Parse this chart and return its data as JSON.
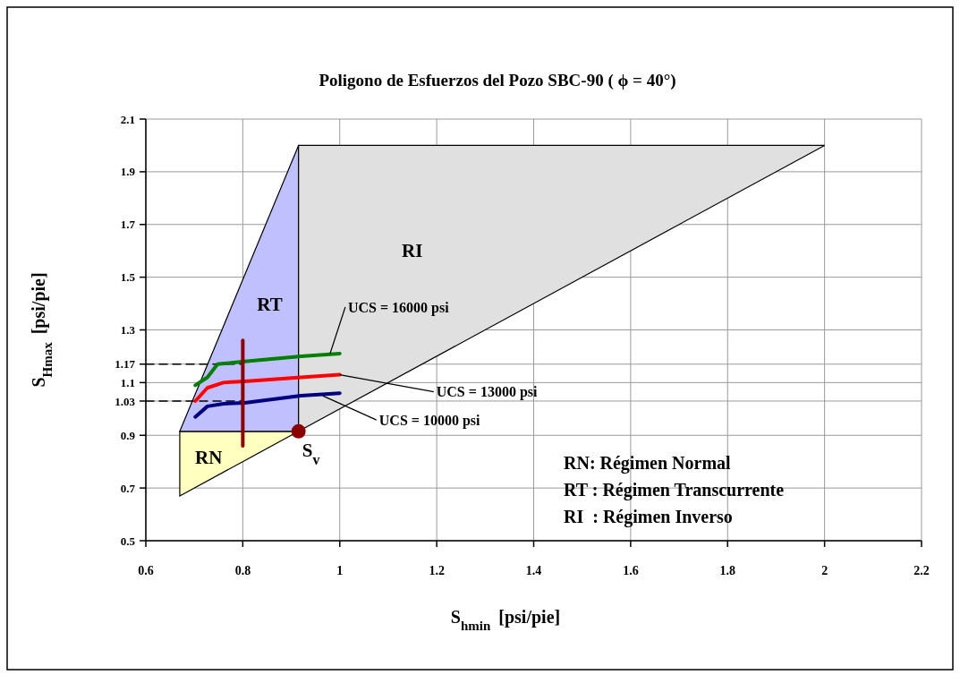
{
  "chart_data": {
    "type": "line",
    "title": "Poligono de Esfuerzos del Pozo SBC-90 ( ϕ = 40°)",
    "xlabel": "S$_{hmin}$ [psi/pie]",
    "ylabel": "S$_{Hmax}$ [psi/pie]",
    "xlim": [
      0.6,
      2.2
    ],
    "ylim": [
      0.5,
      2.1
    ],
    "xticks": [
      0.6,
      0.8,
      1,
      1.2,
      1.4,
      1.6,
      1.8,
      2,
      2.2
    ],
    "yticks": [
      0.5,
      0.7,
      0.9,
      1.03,
      1.1,
      1.17,
      1.3,
      1.5,
      1.7,
      1.9,
      2.1
    ],
    "grid": true,
    "series": [
      {
        "type": "area",
        "name": "RN",
        "color": "#ffffc0",
        "x": [
          0.67,
          0.915,
          0.67
        ],
        "values": [
          0.915,
          0.915,
          0.67
        ]
      },
      {
        "type": "area",
        "name": "RT",
        "color": "#c0c0ff",
        "x": [
          0.67,
          0.915,
          0.915
        ],
        "values": [
          0.915,
          2.0,
          0.915
        ]
      },
      {
        "type": "area",
        "name": "RI",
        "color": "#e0e0e0",
        "x": [
          0.915,
          2.0,
          0.915
        ],
        "values": [
          2.0,
          2.0,
          0.915
        ]
      },
      {
        "color": "#000000",
        "line_style": "dashed",
        "x": [
          0.6,
          0.8
        ],
        "values": [
          1.17,
          1.17
        ]
      },
      {
        "color": "#000000",
        "line_style": "dashed",
        "x": [
          0.6,
          0.8
        ],
        "values": [
          1.03,
          1.03
        ]
      },
      {
        "color": "#008000",
        "x": [
          0.702,
          0.727,
          0.748,
          0.804,
          0.92,
          1.0
        ],
        "values": [
          1.09,
          1.12,
          1.17,
          1.18,
          1.2,
          1.21
        ]
      },
      {
        "color": "#ff0000",
        "x": [
          0.702,
          0.727,
          0.76,
          0.804,
          0.92,
          1.0
        ],
        "values": [
          1.03,
          1.08,
          1.1,
          1.105,
          1.12,
          1.13
        ]
      },
      {
        "color": "#000080",
        "x": [
          0.702,
          0.727,
          0.76,
          0.804,
          0.92,
          1.0
        ],
        "values": [
          0.97,
          1.01,
          1.02,
          1.023,
          1.05,
          1.06
        ]
      },
      {
        "color": "#8b0000",
        "x": [
          0.8,
          0.8
        ],
        "values": [
          0.86,
          1.26
        ]
      },
      {
        "type": "scatter",
        "name": "S$_{v}$",
        "color": "#8b0000",
        "marker": "circle",
        "x": [
          0.915
        ],
        "values": [
          0.915
        ]
      }
    ],
    "annotations": [
      {
        "text": "UCS = 16000 psi",
        "x": 0.98,
        "y": 1.21
      },
      {
        "text": "UCS = 13000 psi",
        "x": 1.0,
        "y": 1.13
      },
      {
        "text": "UCS = 10000 psi",
        "x": 0.965,
        "y": 1.05
      },
      "RN: Régimen Normal",
      "RT : Régimen Transcurrente",
      "RI  : Régimen Inverso"
    ]
  }
}
